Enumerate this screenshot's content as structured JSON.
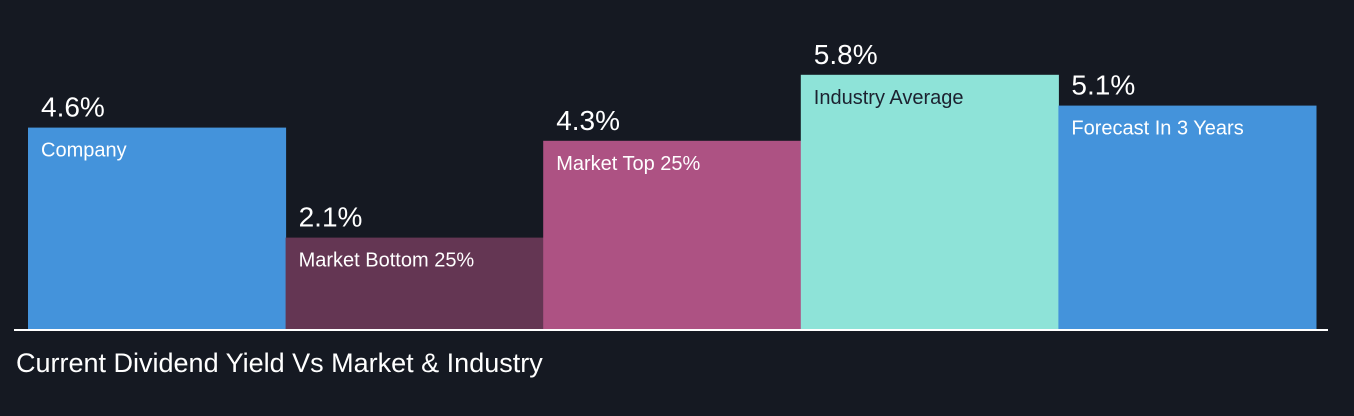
{
  "chart_data": {
    "type": "bar",
    "title": "Current Dividend Yield Vs Market & Industry",
    "xlabel": "",
    "ylabel": "",
    "unit": "%",
    "ylim": [
      0,
      6.0
    ],
    "categories": [
      "Company",
      "Market Bottom 25%",
      "Market Top 25%",
      "Industry Average",
      "Forecast In 3 Years"
    ],
    "values": [
      4.6,
      2.1,
      4.3,
      5.8,
      5.1
    ],
    "value_labels": [
      "4.6%",
      "2.1%",
      "4.3%",
      "5.8%",
      "5.1%"
    ],
    "colors": [
      "#4493db",
      "#643653",
      "#ad5283",
      "#8ee3d8",
      "#4493db"
    ],
    "category_label_colors": [
      "#ffffff",
      "#ffffff",
      "#ffffff",
      "#1c2230",
      "#ffffff"
    ]
  },
  "colors": {
    "background": "#151922",
    "baseline": "#ffffff",
    "text": "#ffffff"
  }
}
